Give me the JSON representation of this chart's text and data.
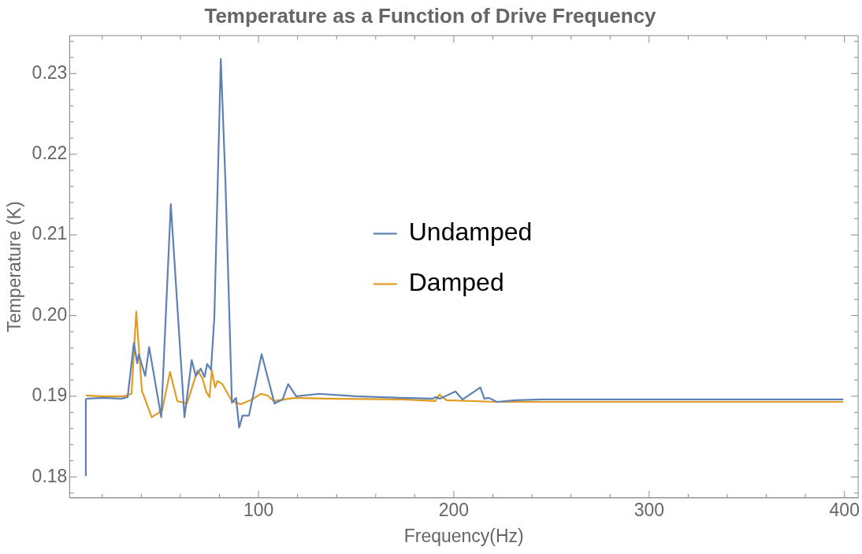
{
  "chart_data": {
    "type": "line",
    "title": "Temperature as a Function of Drive Frequency",
    "xlabel": "Frequency(Hz)",
    "ylabel": "Temperature (K)",
    "xlim": [
      3.3,
      407
    ],
    "ylim": [
      0.1774,
      0.2347
    ],
    "xticks": [
      {
        "value": 20,
        "label": null
      },
      {
        "value": 40,
        "label": null
      },
      {
        "value": 60,
        "label": null
      },
      {
        "value": 80,
        "label": null
      },
      100,
      {
        "value": 120,
        "label": null
      },
      {
        "value": 140,
        "label": null
      },
      {
        "value": 160,
        "label": null
      },
      {
        "value": 180,
        "label": null
      },
      200,
      {
        "value": 220,
        "label": null
      },
      {
        "value": 240,
        "label": null
      },
      {
        "value": 260,
        "label": null
      },
      {
        "value": 280,
        "label": null
      },
      300,
      {
        "value": 320,
        "label": null
      },
      {
        "value": 340,
        "label": null
      },
      {
        "value": 360,
        "label": null
      },
      {
        "value": 380,
        "label": null
      },
      400
    ],
    "yticks": [
      {
        "value": 0.178,
        "label": null
      },
      0.18,
      {
        "value": 0.182,
        "label": null
      },
      {
        "value": 0.184,
        "label": null
      },
      {
        "value": 0.186,
        "label": null
      },
      {
        "value": 0.188,
        "label": null
      },
      0.19,
      {
        "value": 0.192,
        "label": null
      },
      {
        "value": 0.194,
        "label": null
      },
      {
        "value": 0.196,
        "label": null
      },
      {
        "value": 0.198,
        "label": null
      },
      {
        "value": 0.2,
        "label": "0.20"
      },
      {
        "value": 0.202,
        "label": null
      },
      {
        "value": 0.204,
        "label": null
      },
      {
        "value": 0.206,
        "label": null
      },
      {
        "value": 0.208,
        "label": null
      },
      0.21,
      {
        "value": 0.212,
        "label": null
      },
      {
        "value": 0.214,
        "label": null
      },
      {
        "value": 0.216,
        "label": null
      },
      {
        "value": 0.218,
        "label": null
      },
      0.22,
      {
        "value": 0.222,
        "label": null
      },
      {
        "value": 0.224,
        "label": null
      },
      {
        "value": 0.226,
        "label": null
      },
      {
        "value": 0.228,
        "label": null
      },
      0.23,
      {
        "value": 0.232,
        "label": null
      },
      {
        "value": 0.234,
        "label": null
      }
    ],
    "grid": false,
    "legend": "center",
    "line_style": "solid",
    "series": [
      {
        "name": "Undamped",
        "color": "#5e81b5",
        "x": [
          11.5,
          11.6,
          12.3,
          20,
          30,
          33,
          36.2,
          37.9,
          38.7,
          42,
          44,
          50.2,
          55.1,
          62.1,
          65.8,
          67.9,
          70.4,
          72.4,
          73.7,
          75.7,
          77.4,
          80.7,
          83.1,
          86.4,
          88.5,
          90.1,
          91.8,
          95.1,
          101.6,
          108.2,
          112.3,
          115.2,
          119.3,
          131,
          150,
          174,
          189.3,
          190.5,
          193,
          200.8,
          204.5,
          213.6,
          215.6,
          218,
          222,
          231.7,
          245.7,
          300,
          399
        ],
        "values": [
          0.1802,
          0.1896,
          0.1897,
          0.1898,
          0.1897,
          0.1899,
          0.1966,
          0.1941,
          0.1952,
          0.1925,
          0.1961,
          0.1874,
          0.2138,
          0.1874,
          0.1945,
          0.1925,
          0.1934,
          0.1924,
          0.194,
          0.1933,
          0.1998,
          0.2318,
          0.2164,
          0.1892,
          0.1898,
          0.1861,
          0.1876,
          0.1876,
          0.1952,
          0.1891,
          0.1896,
          0.1915,
          0.19,
          0.1903,
          0.19,
          0.1898,
          0.1897,
          0.1899,
          0.1897,
          0.1906,
          0.1896,
          0.1911,
          0.1897,
          0.1898,
          0.1893,
          0.1895,
          0.1896,
          0.1896,
          0.1896
        ]
      },
      {
        "name": "Damped",
        "color": "#e19c24",
        "x": [
          12,
          20,
          31,
          35,
          37.4,
          40.3,
          45.3,
          50.6,
          54.7,
          58.4,
          63.4,
          68.7,
          71.2,
          73.3,
          74.9,
          76.1,
          77.8,
          79,
          81.5,
          86.4,
          90.9,
          96.7,
          101.2,
          104.5,
          107.8,
          118.5,
          135.8,
          174,
          190.5,
          192.6,
          196.3,
          222,
          399
        ],
        "values": [
          0.1901,
          0.19,
          0.19,
          0.1903,
          0.2005,
          0.1907,
          0.1874,
          0.1882,
          0.193,
          0.1894,
          0.1891,
          0.1932,
          0.1923,
          0.1905,
          0.1899,
          0.1932,
          0.1911,
          0.1919,
          0.1915,
          0.1894,
          0.189,
          0.1896,
          0.1903,
          0.1901,
          0.1894,
          0.1898,
          0.1897,
          0.1896,
          0.1894,
          0.1902,
          0.1895,
          0.1893,
          0.1893
        ]
      }
    ]
  }
}
